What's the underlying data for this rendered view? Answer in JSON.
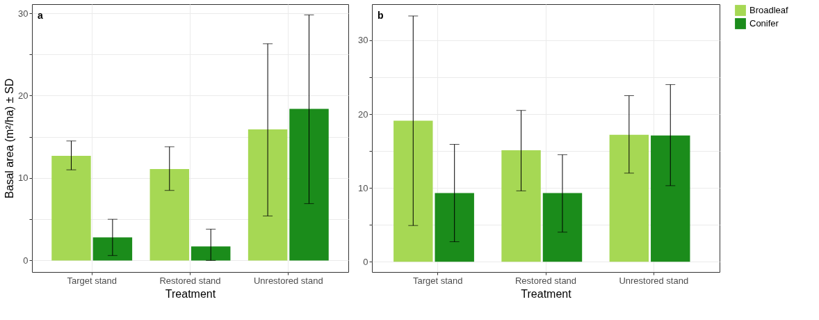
{
  "chart_data": [
    {
      "type": "bar",
      "xlabel": "Treatment",
      "ylabel": "Basal area (m²/ha) ± SD",
      "annotations": [
        "a"
      ],
      "categories": [
        "Target stand",
        "Restored stand",
        "Unrestored stand"
      ],
      "series": [
        {
          "name": "Broadleaf",
          "color": "#a6d854",
          "values": [
            12.7,
            11.1,
            15.9
          ],
          "errors": [
            [
              11.0,
              14.5
            ],
            [
              8.5,
              13.8
            ],
            [
              5.4,
              26.3
            ]
          ]
        },
        {
          "name": "Conifer",
          "color": "#1b8c1b",
          "values": [
            2.8,
            1.7,
            18.4
          ],
          "errors": [
            [
              0.6,
              5.0
            ],
            [
              0.0,
              3.8
            ],
            [
              6.9,
              29.8
            ]
          ]
        }
      ],
      "ylim": [
        -1.4,
        31.1
      ],
      "yticks": [
        0,
        {
          "value": 5,
          "label": null
        },
        10,
        {
          "value": 15,
          "label": null
        },
        20,
        {
          "value": 25,
          "label": null
        },
        30
      ],
      "grid": true,
      "legend": "right"
    },
    {
      "type": "bar",
      "xlabel": "Treatment",
      "annotations": [
        "b"
      ],
      "categories": [
        "Target stand",
        "Restored stand",
        "Unrestored stand"
      ],
      "series": [
        {
          "name": "Broadleaf",
          "color": "#a6d854",
          "values": [
            19.1,
            15.1,
            17.2
          ],
          "errors": [
            [
              4.9,
              33.3
            ],
            [
              9.6,
              20.5
            ],
            [
              12.0,
              22.5
            ]
          ]
        },
        {
          "name": "Conifer",
          "color": "#1b8c1b",
          "values": [
            9.3,
            9.3,
            17.1
          ],
          "errors": [
            [
              2.7,
              15.9
            ],
            [
              4.0,
              14.5
            ],
            [
              10.3,
              24.0
            ]
          ]
        }
      ],
      "ylim": [
        -1.4,
        34.9
      ],
      "yticks": [
        0,
        {
          "value": 5,
          "label": null
        },
        10,
        {
          "value": 15,
          "label": null
        },
        20,
        {
          "value": 25,
          "label": null
        },
        30
      ],
      "grid": true,
      "legend": "right"
    }
  ]
}
